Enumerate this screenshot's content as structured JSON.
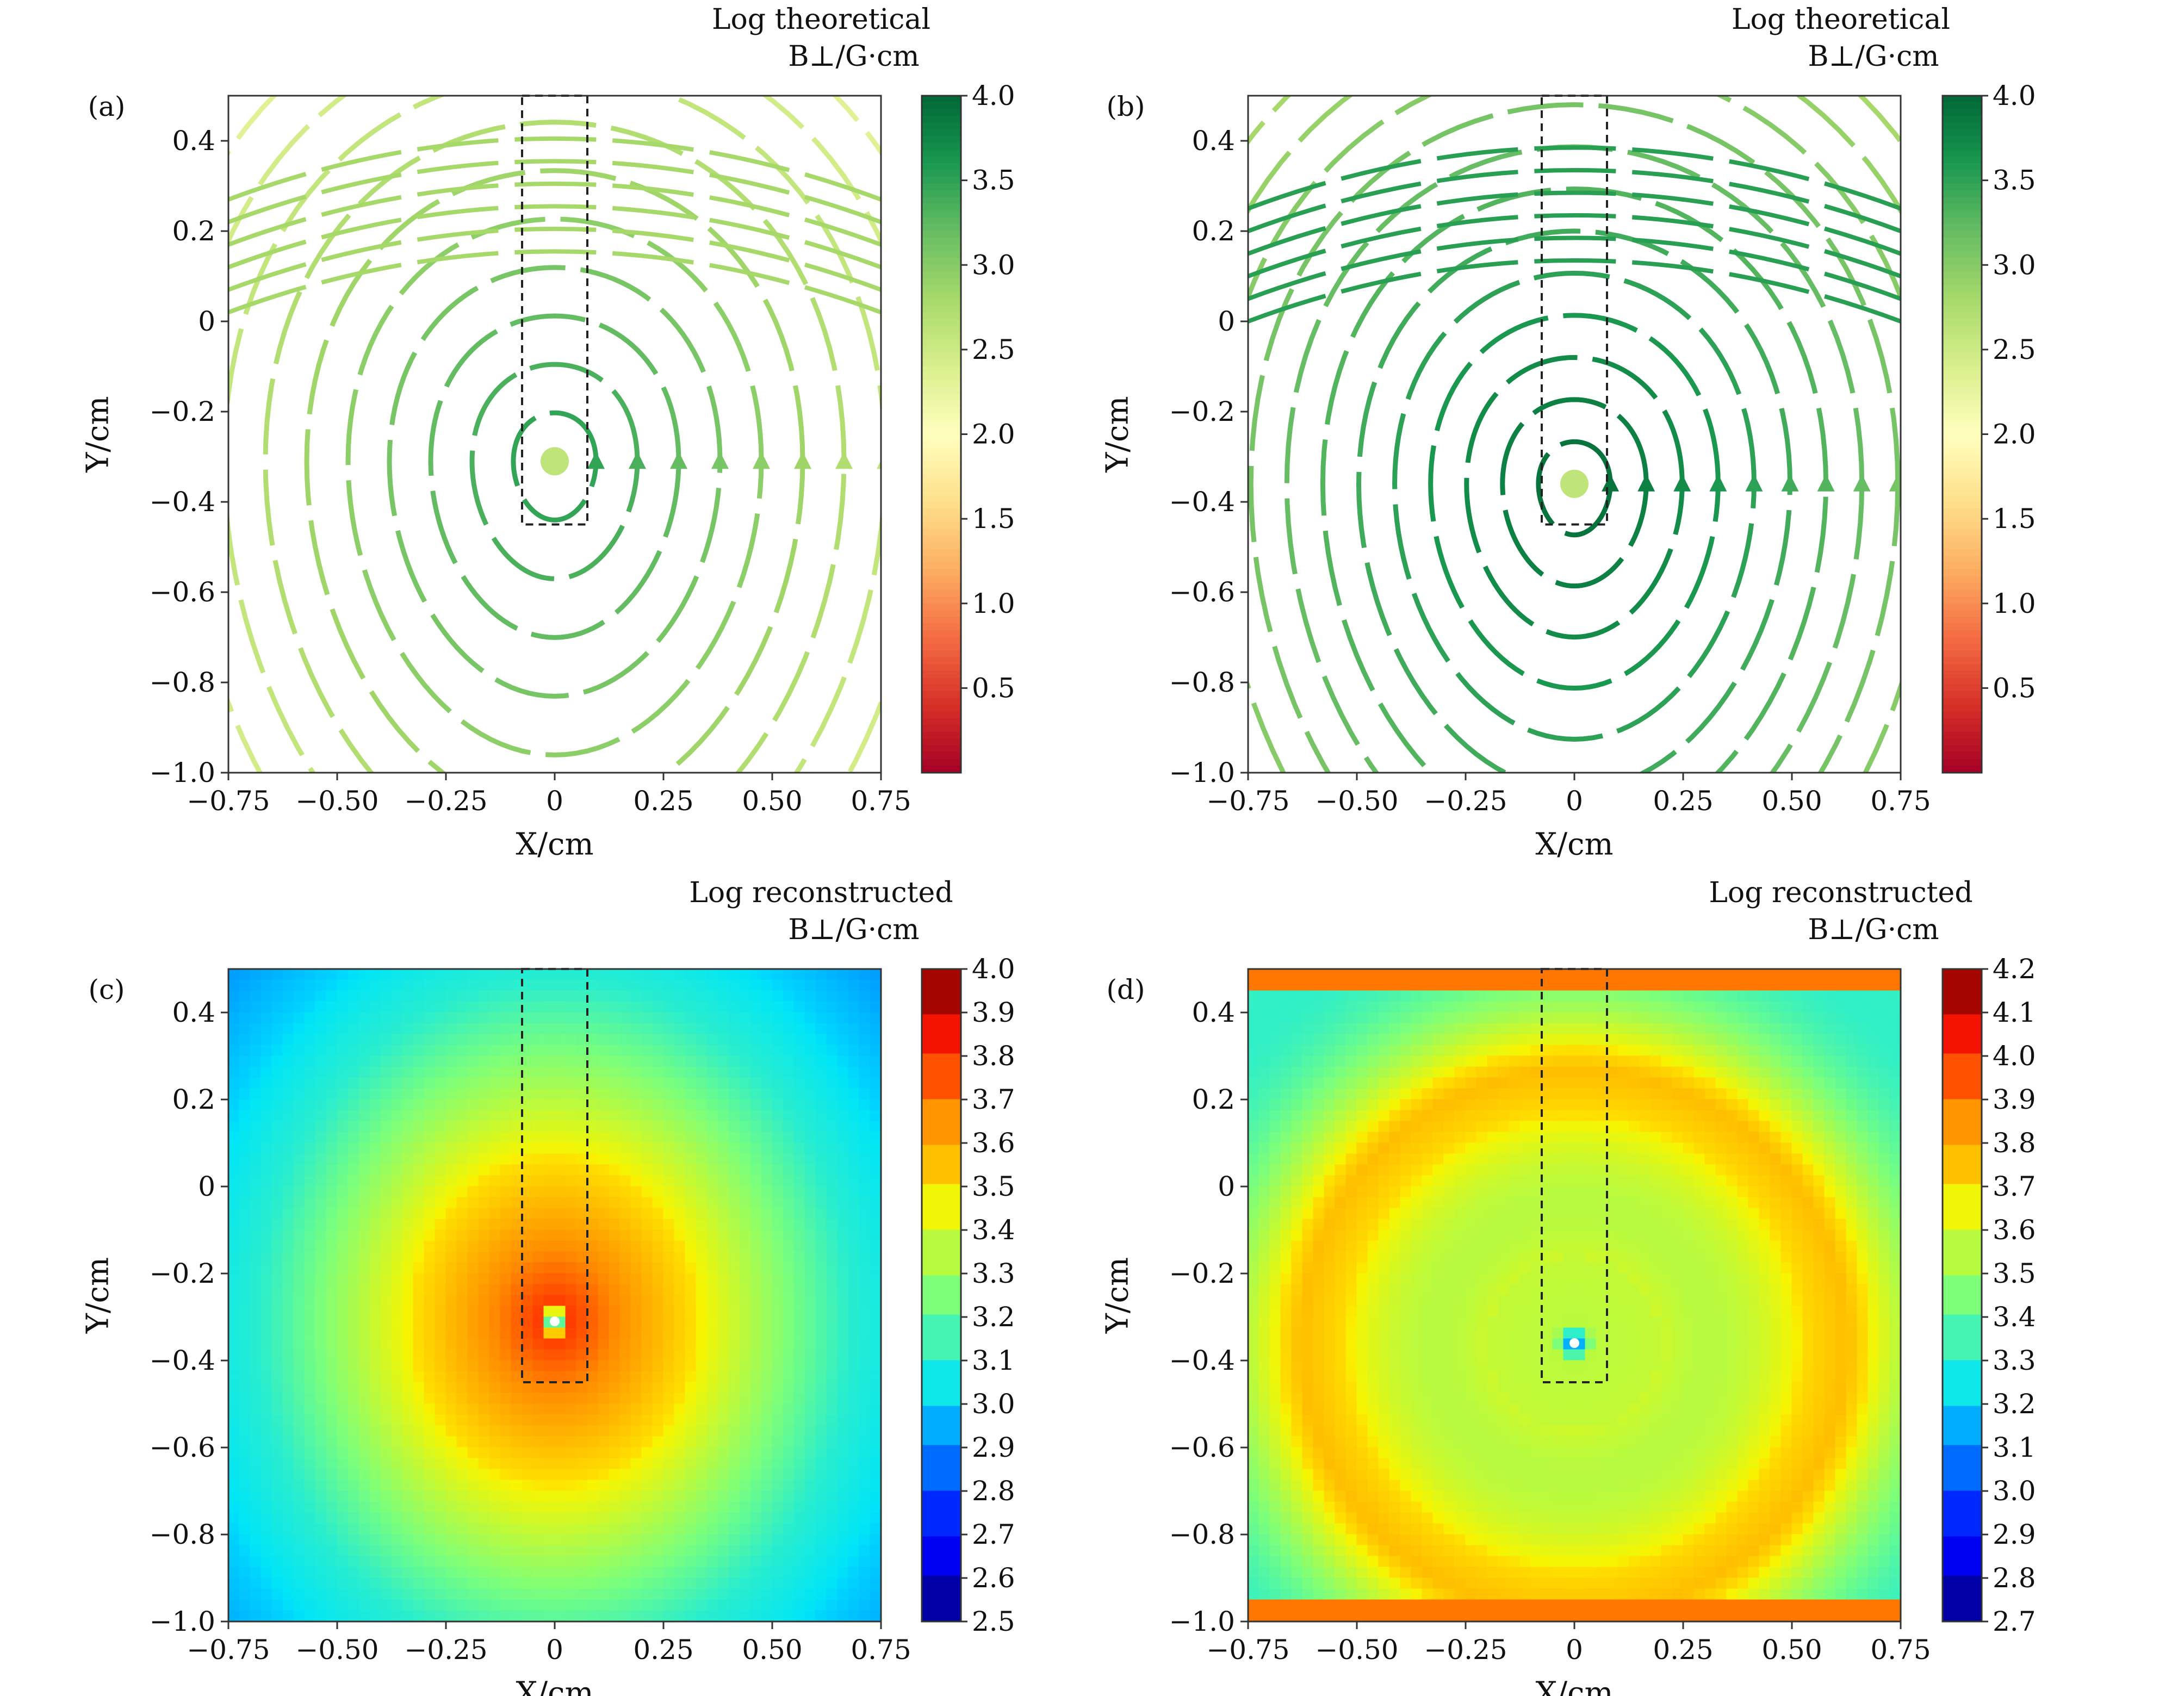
{
  "figure": {
    "panels": [
      {
        "tag": "(a)",
        "cbar_title_1": "Log theoretical",
        "cbar_title_2": "B⊥/G·cm"
      },
      {
        "tag": "(b)",
        "cbar_title_1": "Log theoretical",
        "cbar_title_2": "B⊥/G·cm"
      },
      {
        "tag": "(c)",
        "cbar_title_1": "Log reconstructed",
        "cbar_title_2": "B⊥/G·cm"
      },
      {
        "tag": "(d)",
        "cbar_title_1": "Log reconstructed",
        "cbar_title_2": "B⊥/G·cm"
      }
    ]
  },
  "chart_data": [
    {
      "type": "streamline",
      "panel": "(a)",
      "xlabel": "X/cm",
      "ylabel": "Y/cm",
      "xlim": [
        -0.75,
        0.75
      ],
      "ylim": [
        -1.0,
        0.5
      ],
      "xticks": [
        "−0.75",
        "−0.50",
        "−0.25",
        "0",
        "0.25",
        "0.50",
        "0.75"
      ],
      "yticks": [
        "−1.0",
        "−0.8",
        "−0.6",
        "−0.4",
        "−0.2",
        "0",
        "0.2",
        "0.4"
      ],
      "colorbar": {
        "title": "Log theoretical B⊥/G·cm",
        "colormap": "RdYlGn",
        "range": [
          0.0,
          4.0
        ],
        "ticks": [
          "0.5",
          "1.0",
          "1.5",
          "2.0",
          "2.5",
          "3.0",
          "3.5",
          "4.0"
        ]
      },
      "field_center": [
        0.0,
        -0.31
      ],
      "dashed_rect": {
        "x": [
          -0.075,
          0.075
        ],
        "y": [
          -0.45,
          0.5
        ]
      }
    },
    {
      "type": "streamline",
      "panel": "(b)",
      "xlabel": "X/cm",
      "ylabel": "Y/cm",
      "xlim": [
        -0.75,
        0.75
      ],
      "ylim": [
        -1.0,
        0.5
      ],
      "xticks": [
        "−0.75",
        "−0.50",
        "−0.25",
        "0",
        "0.25",
        "0.50",
        "0.75"
      ],
      "yticks": [
        "−1.0",
        "−0.8",
        "−0.6",
        "−0.4",
        "−0.2",
        "0",
        "0.2",
        "0.4"
      ],
      "colorbar": {
        "title": "Log theoretical B⊥/G·cm",
        "colormap": "RdYlGn",
        "range": [
          0.0,
          4.0
        ],
        "ticks": [
          "0.5",
          "1.0",
          "1.5",
          "2.0",
          "2.5",
          "3.0",
          "3.5",
          "4.0"
        ]
      },
      "field_center": [
        0.0,
        -0.36
      ],
      "dashed_rect": {
        "x": [
          -0.075,
          0.075
        ],
        "y": [
          -0.45,
          0.5
        ]
      }
    },
    {
      "type": "heatmap",
      "panel": "(c)",
      "xlabel": "X/cm",
      "ylabel": "Y/cm",
      "xlim": [
        -0.75,
        0.75
      ],
      "ylim": [
        -1.0,
        0.5
      ],
      "xticks": [
        "−0.75",
        "−0.50",
        "−0.25",
        "0",
        "0.25",
        "0.50",
        "0.75"
      ],
      "yticks": [
        "−1.0",
        "−0.8",
        "−0.6",
        "−0.4",
        "−0.2",
        "0",
        "0.2",
        "0.4"
      ],
      "colorbar": {
        "title": "Log reconstructed B⊥/G·cm",
        "colormap": "jet",
        "range": [
          2.5,
          4.0
        ],
        "ticks": [
          "2.5",
          "2.6",
          "2.7",
          "2.8",
          "2.9",
          "3.0",
          "3.1",
          "3.2",
          "3.3",
          "3.4",
          "3.5",
          "3.6",
          "3.7",
          "3.8",
          "3.9",
          "4.0"
        ]
      },
      "field_center": [
        0.0,
        -0.31
      ],
      "dashed_rect": {
        "x": [
          -0.075,
          0.075
        ],
        "y": [
          -0.45,
          0.5
        ]
      }
    },
    {
      "type": "heatmap",
      "panel": "(d)",
      "xlabel": "X/cm",
      "ylabel": "Y/cm",
      "xlim": [
        -0.75,
        0.75
      ],
      "ylim": [
        -1.0,
        0.5
      ],
      "xticks": [
        "−0.75",
        "−0.50",
        "−0.25",
        "0",
        "0.25",
        "0.50",
        "0.75"
      ],
      "yticks": [
        "−1.0",
        "−0.8",
        "−0.6",
        "−0.4",
        "−0.2",
        "0",
        "0.2",
        "0.4"
      ],
      "colorbar": {
        "title": "Log reconstructed B⊥/G·cm",
        "colormap": "jet",
        "range": [
          2.7,
          4.2
        ],
        "ticks": [
          "2.7",
          "2.8",
          "2.9",
          "3.0",
          "3.1",
          "3.2",
          "3.3",
          "3.4",
          "3.5",
          "3.6",
          "3.7",
          "3.8",
          "3.9",
          "4.0",
          "4.1",
          "4.2"
        ]
      },
      "field_center": [
        0.0,
        -0.36
      ],
      "dashed_rect": {
        "x": [
          -0.075,
          0.075
        ],
        "y": [
          -0.45,
          0.5
        ]
      }
    }
  ]
}
